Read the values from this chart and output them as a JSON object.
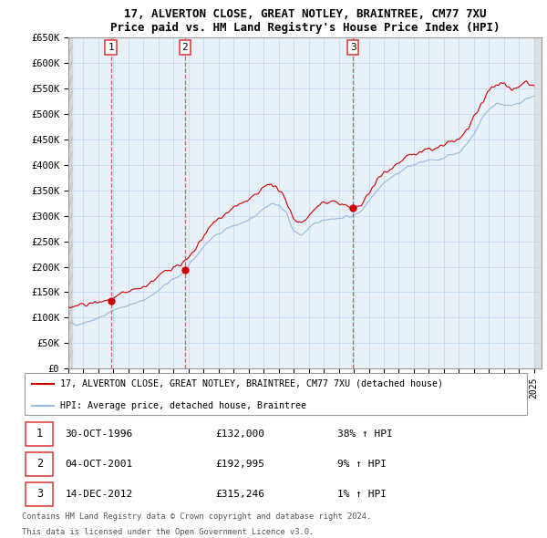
{
  "title1": "17, ALVERTON CLOSE, GREAT NOTLEY, BRAINTREE, CM77 7XU",
  "title2": "Price paid vs. HM Land Registry's House Price Index (HPI)",
  "ylabel_ticks": [
    "£0",
    "£50K",
    "£100K",
    "£150K",
    "£200K",
    "£250K",
    "£300K",
    "£350K",
    "£400K",
    "£450K",
    "£500K",
    "£550K",
    "£600K",
    "£650K"
  ],
  "ytick_values": [
    0,
    50000,
    100000,
    150000,
    200000,
    250000,
    300000,
    350000,
    400000,
    450000,
    500000,
    550000,
    600000,
    650000
  ],
  "xlim_start": 1994.0,
  "xlim_end": 2025.5,
  "ylim_min": 0,
  "ylim_max": 650000,
  "legend_line1": "17, ALVERTON CLOSE, GREAT NOTLEY, BRAINTREE, CM77 7XU (detached house)",
  "legend_line2": "HPI: Average price, detached house, Braintree",
  "sale_color": "#cc0000",
  "hpi_color": "#99bbdd",
  "sale_points": [
    {
      "label": "1",
      "date": 1996.83,
      "price": 132000,
      "date_str": "30-OCT-1996",
      "price_str": "£132,000",
      "pct_str": "38% ↑ HPI"
    },
    {
      "label": "2",
      "date": 2001.75,
      "price": 192995,
      "date_str": "04-OCT-2001",
      "price_str": "£192,995",
      "pct_str": "9% ↑ HPI"
    },
    {
      "label": "3",
      "date": 2012.95,
      "price": 315246,
      "date_str": "14-DEC-2012",
      "price_str": "£315,246",
      "pct_str": "1% ↑ HPI"
    }
  ],
  "vline_color": "#dd4444",
  "footer1": "Contains HM Land Registry data © Crown copyright and database right 2024.",
  "footer2": "This data is licensed under the Open Government Licence v3.0.",
  "hpi_keypoints": [
    [
      1994.0,
      90000
    ],
    [
      1994.5,
      87000
    ],
    [
      1995.0,
      90000
    ],
    [
      1995.5,
      95000
    ],
    [
      1996.0,
      100000
    ],
    [
      1996.5,
      105000
    ],
    [
      1997.0,
      115000
    ],
    [
      1997.5,
      120000
    ],
    [
      1998.0,
      125000
    ],
    [
      1998.5,
      128000
    ],
    [
      1999.0,
      135000
    ],
    [
      1999.5,
      143000
    ],
    [
      2000.0,
      153000
    ],
    [
      2000.5,
      165000
    ],
    [
      2001.0,
      175000
    ],
    [
      2001.5,
      185000
    ],
    [
      2002.0,
      200000
    ],
    [
      2002.5,
      220000
    ],
    [
      2003.0,
      240000
    ],
    [
      2003.5,
      255000
    ],
    [
      2004.0,
      265000
    ],
    [
      2004.5,
      275000
    ],
    [
      2005.0,
      280000
    ],
    [
      2005.5,
      285000
    ],
    [
      2006.0,
      290000
    ],
    [
      2006.5,
      300000
    ],
    [
      2007.0,
      315000
    ],
    [
      2007.5,
      325000
    ],
    [
      2008.0,
      320000
    ],
    [
      2008.5,
      305000
    ],
    [
      2009.0,
      270000
    ],
    [
      2009.5,
      262000
    ],
    [
      2010.0,
      275000
    ],
    [
      2010.5,
      285000
    ],
    [
      2011.0,
      293000
    ],
    [
      2011.5,
      295000
    ],
    [
      2012.0,
      295000
    ],
    [
      2012.5,
      298000
    ],
    [
      2013.0,
      300000
    ],
    [
      2013.5,
      310000
    ],
    [
      2014.0,
      330000
    ],
    [
      2014.5,
      350000
    ],
    [
      2015.0,
      365000
    ],
    [
      2015.5,
      375000
    ],
    [
      2016.0,
      385000
    ],
    [
      2016.5,
      395000
    ],
    [
      2017.0,
      400000
    ],
    [
      2017.5,
      405000
    ],
    [
      2018.0,
      408000
    ],
    [
      2018.5,
      410000
    ],
    [
      2019.0,
      415000
    ],
    [
      2019.5,
      420000
    ],
    [
      2020.0,
      425000
    ],
    [
      2020.5,
      440000
    ],
    [
      2021.0,
      460000
    ],
    [
      2021.5,
      490000
    ],
    [
      2022.0,
      510000
    ],
    [
      2022.5,
      520000
    ],
    [
      2023.0,
      520000
    ],
    [
      2023.5,
      515000
    ],
    [
      2024.0,
      520000
    ],
    [
      2024.5,
      530000
    ],
    [
      2025.0,
      535000
    ]
  ],
  "pp_keypoints": [
    [
      1994.0,
      120000
    ],
    [
      1994.5,
      122000
    ],
    [
      1995.0,
      125000
    ],
    [
      1995.5,
      128000
    ],
    [
      1996.0,
      130000
    ],
    [
      1996.5,
      132000
    ],
    [
      1997.0,
      135000
    ],
    [
      1997.5,
      145000
    ],
    [
      1998.0,
      150000
    ],
    [
      1998.5,
      155000
    ],
    [
      1999.0,
      160000
    ],
    [
      1999.5,
      170000
    ],
    [
      2000.0,
      180000
    ],
    [
      2000.5,
      192000
    ],
    [
      2001.0,
      200000
    ],
    [
      2001.5,
      205000
    ],
    [
      2002.0,
      215000
    ],
    [
      2002.5,
      235000
    ],
    [
      2003.0,
      260000
    ],
    [
      2003.5,
      280000
    ],
    [
      2004.0,
      295000
    ],
    [
      2004.5,
      305000
    ],
    [
      2005.0,
      315000
    ],
    [
      2005.5,
      325000
    ],
    [
      2006.0,
      330000
    ],
    [
      2006.5,
      340000
    ],
    [
      2007.0,
      355000
    ],
    [
      2007.5,
      365000
    ],
    [
      2008.0,
      350000
    ],
    [
      2008.5,
      330000
    ],
    [
      2009.0,
      295000
    ],
    [
      2009.5,
      285000
    ],
    [
      2010.0,
      300000
    ],
    [
      2010.5,
      315000
    ],
    [
      2011.0,
      325000
    ],
    [
      2011.5,
      330000
    ],
    [
      2012.0,
      325000
    ],
    [
      2012.5,
      318000
    ],
    [
      2013.0,
      315000
    ],
    [
      2013.5,
      320000
    ],
    [
      2014.0,
      345000
    ],
    [
      2014.5,
      368000
    ],
    [
      2015.0,
      385000
    ],
    [
      2015.5,
      395000
    ],
    [
      2016.0,
      405000
    ],
    [
      2016.5,
      415000
    ],
    [
      2017.0,
      420000
    ],
    [
      2017.5,
      425000
    ],
    [
      2018.0,
      430000
    ],
    [
      2018.5,
      432000
    ],
    [
      2019.0,
      438000
    ],
    [
      2019.5,
      445000
    ],
    [
      2020.0,
      450000
    ],
    [
      2020.5,
      468000
    ],
    [
      2021.0,
      490000
    ],
    [
      2021.5,
      520000
    ],
    [
      2022.0,
      545000
    ],
    [
      2022.5,
      560000
    ],
    [
      2023.0,
      560000
    ],
    [
      2023.5,
      548000
    ],
    [
      2024.0,
      555000
    ],
    [
      2024.5,
      565000
    ],
    [
      2025.0,
      555000
    ]
  ]
}
